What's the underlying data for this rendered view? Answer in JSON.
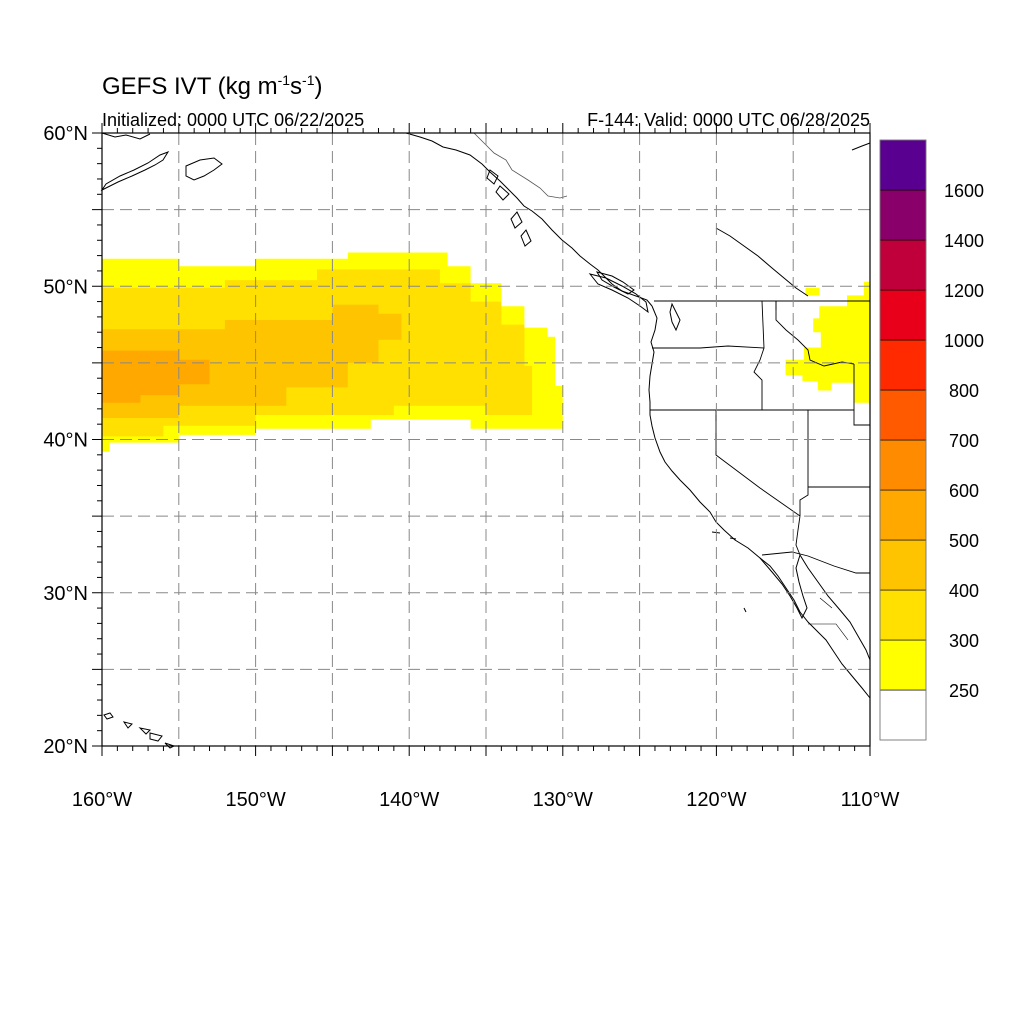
{
  "title": {
    "text": "GEFS IVT (kg m",
    "exp1": "-1",
    "mid": "s",
    "exp2": "-1",
    "close": ")"
  },
  "subtitle_left": "Initialized: 0000 UTC 06/22/2025",
  "subtitle_right": "F-144: Valid: 0000 UTC 06/28/2025",
  "map": {
    "projection": "cylindrical equidistant",
    "lon_range": [
      -160,
      -110
    ],
    "lat_range": [
      20,
      60
    ],
    "grid": "dashed gray every 5 degrees",
    "lat_labels": [
      {
        "value": 60,
        "text": "60°N"
      },
      {
        "value": 50,
        "text": "50°N"
      },
      {
        "value": 40,
        "text": "40°N"
      },
      {
        "value": 30,
        "text": "30°N"
      },
      {
        "value": 20,
        "text": "20°N"
      }
    ],
    "lon_labels": [
      {
        "value": -160,
        "text": "160°W"
      },
      {
        "value": -150,
        "text": "150°W"
      },
      {
        "value": -140,
        "text": "140°W"
      },
      {
        "value": -130,
        "text": "130°W"
      },
      {
        "value": -120,
        "text": "120°W"
      },
      {
        "value": -110,
        "text": "110°W"
      }
    ]
  },
  "colorbar": {
    "levels": [
      "250",
      "300",
      "400",
      "500",
      "600",
      "700",
      "800",
      "1000",
      "1200",
      "1400",
      "1600"
    ],
    "colors": [
      "#ffffff",
      "#ffff00",
      "#ffe000",
      "#ffc400",
      "#ffa800",
      "#ff8c00",
      "#ff5a00",
      "#ff2a00",
      "#e8001a",
      "#c0003a",
      "#8a006a",
      "#5a0090"
    ],
    "position": "right"
  },
  "ivt_regions": [
    {
      "name": "plume-outer",
      "level": "250-300",
      "color": "#ffff00",
      "polygon": [
        [
          -160,
          39.2
        ],
        [
          -159.5,
          39.2
        ],
        [
          -159.5,
          39.8
        ],
        [
          -155,
          39.8
        ],
        [
          -155,
          40.3
        ],
        [
          -150,
          40.3
        ],
        [
          -150,
          40.7
        ],
        [
          -142.5,
          40.7
        ],
        [
          -142.5,
          41.3
        ],
        [
          -136,
          41.3
        ],
        [
          -136,
          40.7
        ],
        [
          -130,
          40.7
        ],
        [
          -130,
          43.5
        ],
        [
          -130.5,
          43.5
        ],
        [
          -130.5,
          46.7
        ],
        [
          -131,
          46.7
        ],
        [
          -131,
          47.3
        ],
        [
          -132.5,
          47.3
        ],
        [
          -132.5,
          48.7
        ],
        [
          -134,
          48.7
        ],
        [
          -134,
          50.2
        ],
        [
          -136,
          50.2
        ],
        [
          -136,
          51.3
        ],
        [
          -137.5,
          51.3
        ],
        [
          -137.5,
          52.2
        ],
        [
          -144,
          52.2
        ],
        [
          -144,
          51.8
        ],
        [
          -150,
          51.8
        ],
        [
          -150,
          51.3
        ],
        [
          -155,
          51.3
        ],
        [
          -155,
          51.8
        ],
        [
          -160,
          51.8
        ]
      ]
    },
    {
      "name": "plume-300",
      "level": "300-400",
      "color": "#ffe000",
      "polygon": [
        [
          -160,
          40.2
        ],
        [
          -156,
          40.2
        ],
        [
          -156,
          40.9
        ],
        [
          -150,
          40.9
        ],
        [
          -150,
          41.6
        ],
        [
          -141,
          41.6
        ],
        [
          -141,
          42.2
        ],
        [
          -135,
          42.2
        ],
        [
          -135,
          41.6
        ],
        [
          -132,
          41.6
        ],
        [
          -132,
          44.8
        ],
        [
          -132.5,
          44.8
        ],
        [
          -132.5,
          47.5
        ],
        [
          -134,
          47.5
        ],
        [
          -134,
          49
        ],
        [
          -136,
          49
        ],
        [
          -136,
          50.2
        ],
        [
          -138,
          50.2
        ],
        [
          -138,
          51.1
        ],
        [
          -146,
          51.1
        ],
        [
          -146,
          50.4
        ],
        [
          -152,
          50.4
        ],
        [
          -152,
          49.9
        ],
        [
          -160,
          49.9
        ]
      ]
    },
    {
      "name": "plume-400",
      "level": "400-500",
      "color": "#ffc400",
      "polygon": [
        [
          -160,
          41.4
        ],
        [
          -155,
          41.4
        ],
        [
          -155,
          42.2
        ],
        [
          -148,
          42.2
        ],
        [
          -148,
          43.4
        ],
        [
          -144,
          43.4
        ],
        [
          -144,
          45
        ],
        [
          -142,
          45
        ],
        [
          -142,
          46.5
        ],
        [
          -140.5,
          46.5
        ],
        [
          -140.5,
          48.2
        ],
        [
          -142,
          48.2
        ],
        [
          -142,
          48.8
        ],
        [
          -145,
          48.8
        ],
        [
          -145,
          47.8
        ],
        [
          -152,
          47.8
        ],
        [
          -152,
          47.2
        ],
        [
          -160,
          47.2
        ]
      ]
    },
    {
      "name": "plume-500",
      "level": "500-600",
      "color": "#ffa800",
      "polygon": [
        [
          -160,
          42.4
        ],
        [
          -157.5,
          42.4
        ],
        [
          -157.5,
          42.9
        ],
        [
          -155,
          42.9
        ],
        [
          -155,
          43.6
        ],
        [
          -153,
          43.6
        ],
        [
          -153,
          45.2
        ],
        [
          -155,
          45.2
        ],
        [
          -155,
          45.8
        ],
        [
          -160,
          45.8
        ]
      ]
    },
    {
      "name": "inland-250",
      "level": "250-300",
      "color": "#ffff00",
      "polygon": [
        [
          -114.4,
          43.8
        ],
        [
          -113.4,
          43.8
        ],
        [
          -113.4,
          43.2
        ],
        [
          -112.5,
          43.2
        ],
        [
          -112.5,
          43.7
        ],
        [
          -111,
          43.7
        ],
        [
          -111,
          42.4
        ],
        [
          -110,
          42.4
        ],
        [
          -110,
          50.3
        ],
        [
          -110.4,
          50.3
        ],
        [
          -110.4,
          49.4
        ],
        [
          -111.5,
          49.4
        ],
        [
          -111.5,
          48.7
        ],
        [
          -113.3,
          48.7
        ],
        [
          -113.3,
          47.9
        ],
        [
          -113.7,
          47.9
        ],
        [
          -113.7,
          47
        ],
        [
          -113.2,
          47
        ],
        [
          -113.2,
          46
        ],
        [
          -114.3,
          46
        ],
        [
          -114.3,
          45.2
        ],
        [
          -115.5,
          45.2
        ],
        [
          -115.5,
          44.2
        ],
        [
          -114.4,
          44.2
        ]
      ]
    },
    {
      "name": "inland-blob",
      "level": "250-300",
      "color": "#ffff00",
      "polygon": [
        [
          -114.2,
          49.9
        ],
        [
          -113.3,
          49.9
        ],
        [
          -113.3,
          49.4
        ],
        [
          -114.2,
          49.4
        ]
      ]
    }
  ]
}
